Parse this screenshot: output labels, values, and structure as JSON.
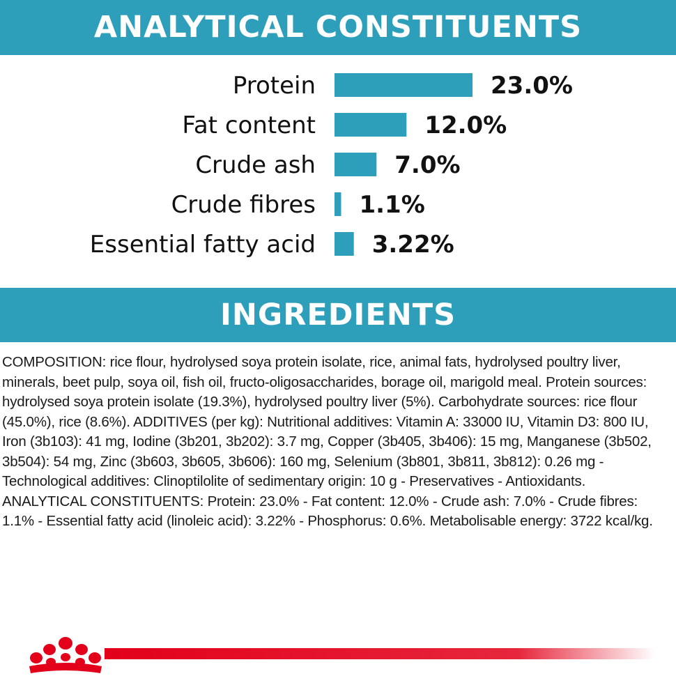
{
  "header": {
    "analytical_title": "ANALYTICAL CONSTITUENTS",
    "ingredients_title": "INGREDIENTS"
  },
  "chart_data": {
    "type": "bar",
    "orientation": "horizontal",
    "categories": [
      "Protein",
      "Fat content",
      "Crude ash",
      "Crude fibres",
      "Essential fatty acid"
    ],
    "values": [
      23.0,
      12.0,
      7.0,
      1.1,
      3.22
    ],
    "value_labels": [
      "23.0%",
      "12.0%",
      "7.0%",
      "1.1%",
      "3.22%"
    ],
    "unit": "%",
    "bar_color": "#2e9fbb",
    "grid": false,
    "legend": "none"
  },
  "ingredients_text": "COMPOSITION: rice flour, hydrolysed soya protein isolate, rice, animal fats, hydrolysed poultry liver, minerals, beet pulp, soya oil, fish oil, fructo-oligosaccharides, borage oil, marigold meal. Protein sources: hydrolysed soya protein isolate (19.3%), hydrolysed poultry liver (5%). Carbohydrate sources: rice flour (45.0%), rice (8.6%). ADDITIVES (per kg): Nutritional additives: Vitamin A: 33000 IU, Vitamin D3: 800 IU, Iron (3b103): 41 mg, Iodine (3b201, 3b202): 3.7 mg, Copper (3b405, 3b406): 15 mg, Manganese (3b502, 3b504): 54 mg, Zinc (3b603, 3b605, 3b606): 160 mg, Selenium (3b801, 3b811, 3b812): 0.26 mg - Technological additives: Clinoptilolite of sedimentary origin: 10 g - Preservatives - Antioxidants. ANALYTICAL CONSTITUENTS: Protein: 23.0% - Fat content: 12.0% - Crude ash: 7.0% - Crude fibres: 1.1% - Essential fatty acid (linoleic acid): 3.22% - Phosphorus: 0.6%. Metabolisable energy: 3722 kcal/kg.",
  "brand": {
    "logo_icon": "crown-logo-icon",
    "accent_color": "#e2001a"
  }
}
